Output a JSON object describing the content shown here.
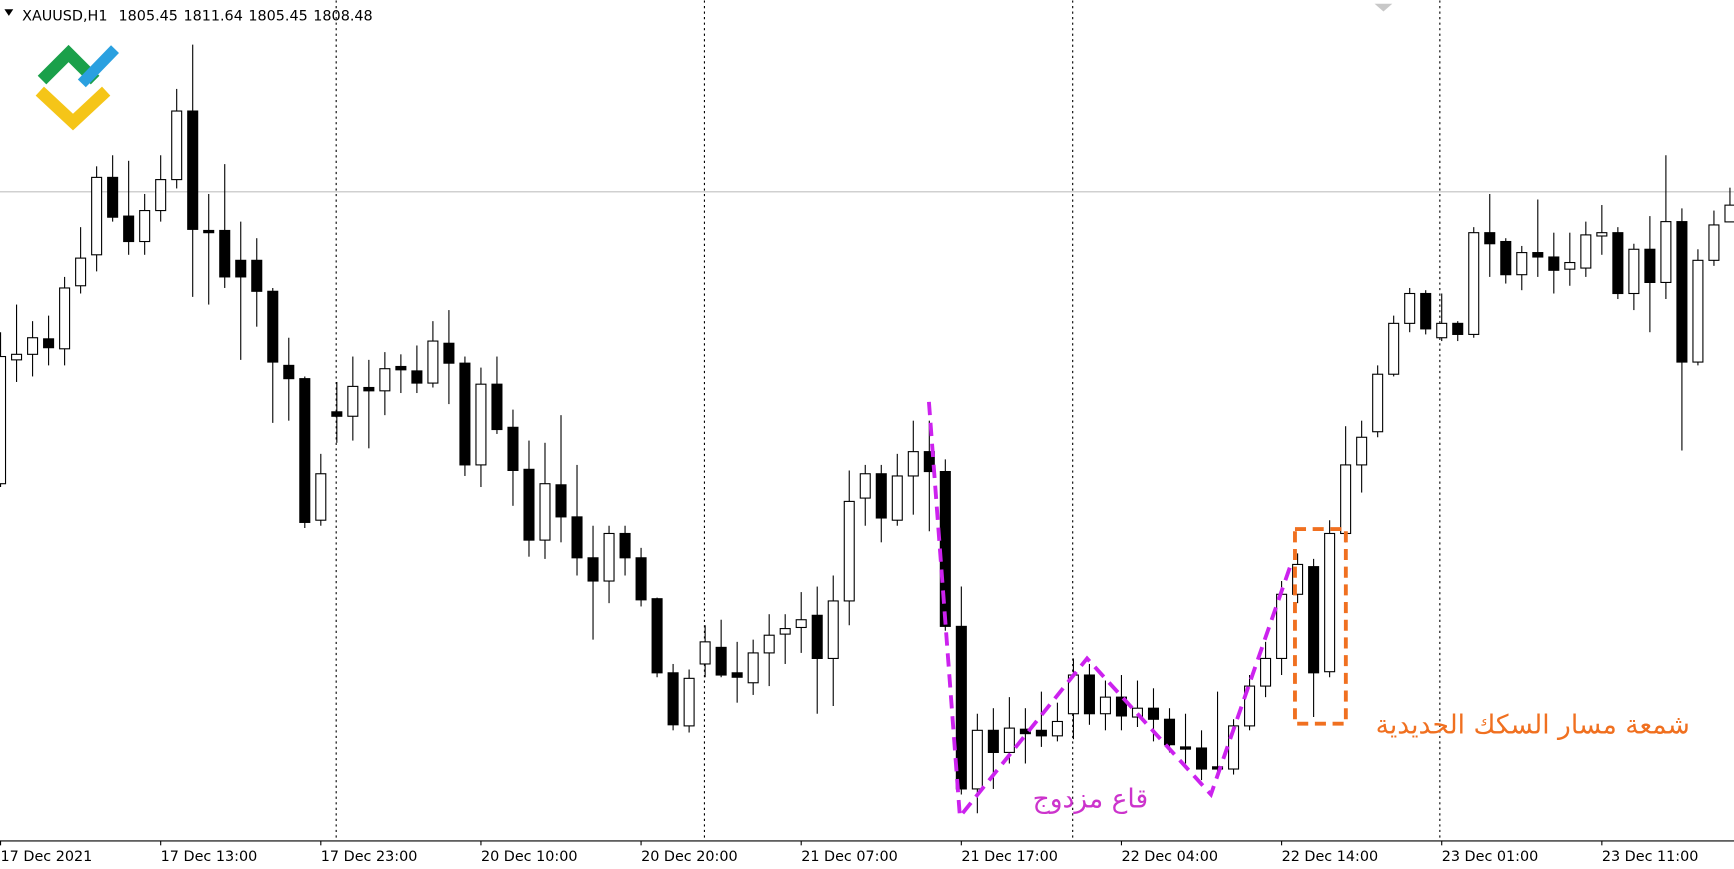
{
  "chart_data": {
    "type": "candlestick",
    "title": "XAUUSD,H1",
    "up_color": "#ffffff",
    "down_color": "#000000",
    "ylim": [
      1693.5,
      1845.5
    ],
    "level_line": 1810.9,
    "annotations": [
      "قاع مزدوج",
      "شمعة مسار السكك الحديدية"
    ],
    "categories": [
      "17 Dec 2021",
      null,
      null,
      null,
      null,
      null,
      null,
      null,
      null,
      null,
      "17 Dec 13:00",
      null,
      null,
      null,
      null,
      null,
      null,
      null,
      null,
      null,
      "17 Dec 23:00",
      null,
      null,
      null,
      null,
      null,
      null,
      null,
      null,
      null,
      "20 Dec 10:00",
      null,
      null,
      null,
      null,
      null,
      null,
      null,
      null,
      null,
      "20 Dec 20:00",
      null,
      null,
      null,
      null,
      null,
      null,
      null,
      null,
      null,
      "21 Dec 07:00",
      null,
      null,
      null,
      null,
      null,
      null,
      null,
      null,
      null,
      "21 Dec 17:00",
      null,
      null,
      null,
      null,
      null,
      null,
      null,
      null,
      null,
      "22 Dec 04:00",
      null,
      null,
      null,
      null,
      null,
      null,
      null,
      null,
      null,
      "22 Dec 14:00",
      null,
      null,
      null,
      null,
      null,
      null,
      null,
      null,
      null,
      "23 Dec 01:00",
      null,
      null,
      null,
      null,
      null,
      null,
      null,
      null,
      null,
      "23 Dec 11:00",
      null,
      null,
      null,
      null,
      null,
      null,
      null,
      null
    ],
    "open": [
      1758.1,
      1780.5,
      1781.5,
      1784.3,
      1782.5,
      1793.9,
      1799.5,
      1813.5,
      1806.5,
      1801.9,
      1807.5,
      1813.1,
      1825.5,
      1803.9,
      1803.9,
      1798.5,
      1798.5,
      1792.9,
      1779.5,
      1777.1,
      1751.5,
      1771.1,
      1770.3,
      1775.5,
      1774.9,
      1779.3,
      1778.5,
      1776.3,
      1783.5,
      1779.9,
      1761.5,
      1776.1,
      1768.3,
      1760.7,
      1747.9,
      1757.9,
      1752.1,
      1744.7,
      1740.5,
      1749.1,
      1744.7,
      1737.3,
      1723.9,
      1714.3,
      1725.5,
      1728.5,
      1723.9,
      1722.1,
      1727.5,
      1730.9,
      1732.1,
      1734.3,
      1726.5,
      1736.9,
      1755.5,
      1759.9,
      1751.5,
      1759.5,
      1763.9,
      1760.3,
      1732.3,
      1702.9,
      1713.5,
      1709.5,
      1713.7,
      1713.5,
      1712.5,
      1716.5,
      1723.5,
      1716.5,
      1719.5,
      1715.9,
      1717.5,
      1715.5,
      1710.5,
      1710.3,
      1706.9,
      1706.5,
      1714.3,
      1721.5,
      1726.5,
      1738.1,
      1743.1,
      1724.1,
      1749.1,
      1761.5,
      1767.5,
      1777.9,
      1787.1,
      1792.5,
      1784.5,
      1787.1,
      1785.1,
      1803.5,
      1801.9,
      1795.9,
      1799.9,
      1799.1,
      1796.9,
      1797.1,
      1802.9,
      1803.5,
      1792.5,
      1800.5,
      1794.5,
      1805.5,
      1780.1,
      1798.5,
      1805.45
    ],
    "high": [
      1785.5,
      1790.5,
      1787.5,
      1788.5,
      1795.5,
      1804.5,
      1815.5,
      1817.5,
      1816.5,
      1810.5,
      1817.5,
      1829.5,
      1837.5,
      1810.5,
      1815.9,
      1805.5,
      1802.5,
      1793.5,
      1784.5,
      1777.5,
      1763.5,
      1776.5,
      1781.1,
      1780.5,
      1781.9,
      1781.5,
      1783.1,
      1787.5,
      1789.5,
      1781.1,
      1779.1,
      1781.1,
      1771.5,
      1765.9,
      1765.5,
      1770.5,
      1761.5,
      1750.5,
      1750.5,
      1750.5,
      1746.5,
      1737.5,
      1725.5,
      1724.5,
      1732.5,
      1733.5,
      1729.5,
      1729.9,
      1734.5,
      1734.5,
      1738.5,
      1739.5,
      1741.5,
      1760.5,
      1761.5,
      1761.5,
      1763.5,
      1769.5,
      1769.5,
      1762.5,
      1739.5,
      1716.5,
      1717.5,
      1719.5,
      1717.5,
      1720.5,
      1718.5,
      1726.5,
      1725.5,
      1722.5,
      1723.5,
      1722.5,
      1721.1,
      1717.5,
      1716.5,
      1713.5,
      1720.5,
      1715.5,
      1723.5,
      1729.5,
      1740.5,
      1745.5,
      1744.5,
      1751.5,
      1768.5,
      1769.5,
      1779.5,
      1788.5,
      1793.5,
      1793.1,
      1792.5,
      1787.5,
      1804.5,
      1810.5,
      1802.5,
      1801.1,
      1809.5,
      1803.5,
      1803.5,
      1805.5,
      1808.5,
      1804.5,
      1801.5,
      1806.5,
      1817.5,
      1807.9,
      1800.5,
      1807.5,
      1811.64
    ],
    "low": [
      1757.5,
      1776.5,
      1777.5,
      1779.5,
      1779.5,
      1792.5,
      1796.5,
      1805.5,
      1799.5,
      1799.5,
      1805.5,
      1811.5,
      1791.9,
      1790.5,
      1793.5,
      1780.5,
      1786.5,
      1769.1,
      1769.5,
      1750.1,
      1750.5,
      1765.5,
      1765.9,
      1764.5,
      1770.5,
      1774.5,
      1774.5,
      1775.5,
      1772.5,
      1759.5,
      1757.5,
      1767.1,
      1754.1,
      1744.9,
      1744.5,
      1747.5,
      1741.5,
      1729.9,
      1736.5,
      1741.5,
      1735.9,
      1723.1,
      1713.5,
      1713.1,
      1723.1,
      1723.1,
      1718.5,
      1719.9,
      1721.5,
      1725.5,
      1727.5,
      1716.5,
      1717.9,
      1732.5,
      1750.5,
      1747.5,
      1750.5,
      1752.5,
      1749.5,
      1731.5,
      1701.9,
      1698.5,
      1702.9,
      1707.5,
      1707.5,
      1710.5,
      1711.5,
      1711.9,
      1714.5,
      1713.5,
      1713.5,
      1714.1,
      1711.5,
      1709.5,
      1707.5,
      1704.5,
      1705.5,
      1705.5,
      1713.5,
      1719.5,
      1723.5,
      1736.5,
      1715.9,
      1723.1,
      1747.5,
      1756.5,
      1766.5,
      1777.5,
      1785.5,
      1785.1,
      1783.9,
      1783.9,
      1784.5,
      1795.5,
      1794.3,
      1793.1,
      1795.5,
      1792.5,
      1793.9,
      1795.5,
      1799.5,
      1791.5,
      1789.5,
      1785.5,
      1791.5,
      1764.1,
      1779.5,
      1797.5,
      1805.45
    ],
    "close": [
      1781.1,
      1781.5,
      1784.5,
      1782.7,
      1793.5,
      1798.9,
      1813.5,
      1806.3,
      1801.9,
      1807.5,
      1813.1,
      1825.5,
      1804.1,
      1803.5,
      1795.5,
      1795.5,
      1792.9,
      1780.1,
      1777.1,
      1751.1,
      1759.9,
      1770.3,
      1775.7,
      1774.9,
      1778.9,
      1778.7,
      1776.3,
      1783.9,
      1779.9,
      1761.5,
      1776.1,
      1767.9,
      1760.5,
      1747.9,
      1758.1,
      1752.1,
      1744.7,
      1740.5,
      1749.1,
      1744.7,
      1737.1,
      1723.9,
      1714.5,
      1722.9,
      1729.5,
      1723.5,
      1723.1,
      1727.5,
      1730.7,
      1731.9,
      1733.5,
      1726.5,
      1736.9,
      1754.9,
      1759.9,
      1751.9,
      1759.5,
      1763.9,
      1760.3,
      1732.3,
      1702.9,
      1713.5,
      1709.5,
      1713.9,
      1712.9,
      1712.5,
      1715.1,
      1723.5,
      1716.5,
      1719.5,
      1716.1,
      1717.5,
      1715.5,
      1710.9,
      1710.1,
      1706.5,
      1706.5,
      1714.3,
      1721.5,
      1726.5,
      1738.1,
      1743.5,
      1723.9,
      1749.1,
      1761.5,
      1766.5,
      1777.9,
      1787.1,
      1792.5,
      1786.1,
      1787.1,
      1785.1,
      1803.5,
      1801.5,
      1795.9,
      1799.9,
      1799.1,
      1796.7,
      1798.1,
      1803.1,
      1803.5,
      1792.5,
      1800.5,
      1794.5,
      1805.5,
      1780.1,
      1798.5,
      1804.9,
      1808.48
    ]
  }
}
